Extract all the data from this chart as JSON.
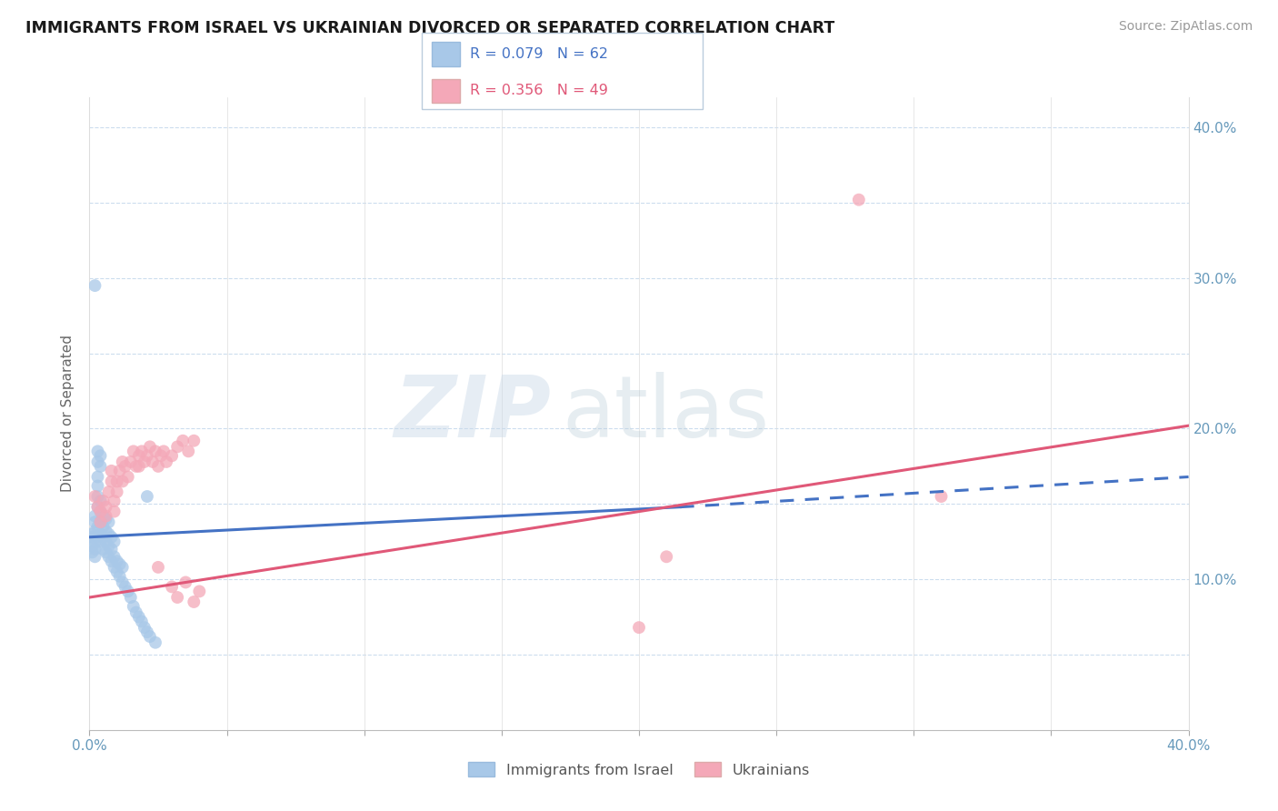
{
  "title": "IMMIGRANTS FROM ISRAEL VS UKRAINIAN DIVORCED OR SEPARATED CORRELATION CHART",
  "source": "Source: ZipAtlas.com",
  "ylabel": "Divorced or Separated",
  "xlim": [
    0.0,
    0.4
  ],
  "ylim": [
    0.0,
    0.42
  ],
  "xticks": [
    0.0,
    0.05,
    0.1,
    0.15,
    0.2,
    0.25,
    0.3,
    0.35,
    0.4
  ],
  "yticks": [
    0.0,
    0.05,
    0.1,
    0.15,
    0.2,
    0.25,
    0.3,
    0.35,
    0.4
  ],
  "R_blue": 0.079,
  "N_blue": 62,
  "R_pink": 0.356,
  "N_pink": 49,
  "legend_label_blue": "Immigrants from Israel",
  "legend_label_pink": "Ukrainians",
  "color_blue": "#a8c8e8",
  "color_pink": "#f4a8b8",
  "line_color_blue": "#4472c4",
  "line_color_pink": "#e05878",
  "watermark_zip": "ZIP",
  "watermark_atlas": "atlas",
  "blue_scatter": [
    [
      0.001,
      0.13
    ],
    [
      0.001,
      0.128
    ],
    [
      0.001,
      0.122
    ],
    [
      0.001,
      0.118
    ],
    [
      0.002,
      0.125
    ],
    [
      0.002,
      0.132
    ],
    [
      0.002,
      0.138
    ],
    [
      0.002,
      0.142
    ],
    [
      0.002,
      0.115
    ],
    [
      0.002,
      0.12
    ],
    [
      0.003,
      0.128
    ],
    [
      0.003,
      0.135
    ],
    [
      0.003,
      0.148
    ],
    [
      0.003,
      0.155
    ],
    [
      0.003,
      0.162
    ],
    [
      0.003,
      0.168
    ],
    [
      0.004,
      0.125
    ],
    [
      0.004,
      0.13
    ],
    [
      0.004,
      0.138
    ],
    [
      0.004,
      0.145
    ],
    [
      0.004,
      0.152
    ],
    [
      0.005,
      0.12
    ],
    [
      0.005,
      0.128
    ],
    [
      0.005,
      0.135
    ],
    [
      0.005,
      0.142
    ],
    [
      0.006,
      0.118
    ],
    [
      0.006,
      0.125
    ],
    [
      0.006,
      0.132
    ],
    [
      0.006,
      0.14
    ],
    [
      0.007,
      0.115
    ],
    [
      0.007,
      0.122
    ],
    [
      0.007,
      0.13
    ],
    [
      0.007,
      0.138
    ],
    [
      0.008,
      0.112
    ],
    [
      0.008,
      0.12
    ],
    [
      0.008,
      0.128
    ],
    [
      0.009,
      0.108
    ],
    [
      0.009,
      0.115
    ],
    [
      0.009,
      0.125
    ],
    [
      0.01,
      0.105
    ],
    [
      0.01,
      0.112
    ],
    [
      0.011,
      0.102
    ],
    [
      0.011,
      0.11
    ],
    [
      0.012,
      0.098
    ],
    [
      0.012,
      0.108
    ],
    [
      0.013,
      0.095
    ],
    [
      0.014,
      0.092
    ],
    [
      0.015,
      0.088
    ],
    [
      0.016,
      0.082
    ],
    [
      0.017,
      0.078
    ],
    [
      0.018,
      0.075
    ],
    [
      0.019,
      0.072
    ],
    [
      0.02,
      0.068
    ],
    [
      0.021,
      0.065
    ],
    [
      0.022,
      0.062
    ],
    [
      0.024,
      0.058
    ],
    [
      0.002,
      0.295
    ],
    [
      0.003,
      0.185
    ],
    [
      0.003,
      0.178
    ],
    [
      0.004,
      0.175
    ],
    [
      0.004,
      0.182
    ],
    [
      0.021,
      0.155
    ]
  ],
  "pink_scatter": [
    [
      0.002,
      0.155
    ],
    [
      0.003,
      0.148
    ],
    [
      0.004,
      0.138
    ],
    [
      0.004,
      0.145
    ],
    [
      0.005,
      0.152
    ],
    [
      0.006,
      0.142
    ],
    [
      0.006,
      0.148
    ],
    [
      0.007,
      0.158
    ],
    [
      0.008,
      0.165
    ],
    [
      0.008,
      0.172
    ],
    [
      0.009,
      0.145
    ],
    [
      0.009,
      0.152
    ],
    [
      0.01,
      0.158
    ],
    [
      0.01,
      0.165
    ],
    [
      0.011,
      0.172
    ],
    [
      0.012,
      0.178
    ],
    [
      0.012,
      0.165
    ],
    [
      0.013,
      0.175
    ],
    [
      0.014,
      0.168
    ],
    [
      0.015,
      0.178
    ],
    [
      0.016,
      0.185
    ],
    [
      0.017,
      0.175
    ],
    [
      0.018,
      0.182
    ],
    [
      0.018,
      0.175
    ],
    [
      0.019,
      0.185
    ],
    [
      0.02,
      0.178
    ],
    [
      0.021,
      0.182
    ],
    [
      0.022,
      0.188
    ],
    [
      0.023,
      0.178
    ],
    [
      0.024,
      0.185
    ],
    [
      0.025,
      0.175
    ],
    [
      0.026,
      0.182
    ],
    [
      0.027,
      0.185
    ],
    [
      0.028,
      0.178
    ],
    [
      0.03,
      0.182
    ],
    [
      0.032,
      0.188
    ],
    [
      0.034,
      0.192
    ],
    [
      0.036,
      0.185
    ],
    [
      0.038,
      0.192
    ],
    [
      0.025,
      0.108
    ],
    [
      0.03,
      0.095
    ],
    [
      0.032,
      0.088
    ],
    [
      0.035,
      0.098
    ],
    [
      0.038,
      0.085
    ],
    [
      0.04,
      0.092
    ],
    [
      0.28,
      0.352
    ],
    [
      0.2,
      0.068
    ],
    [
      0.21,
      0.115
    ],
    [
      0.31,
      0.155
    ]
  ],
  "blue_line_solid": [
    [
      0.0,
      0.128
    ],
    [
      0.215,
      0.148
    ]
  ],
  "blue_line_dashed": [
    [
      0.215,
      0.148
    ],
    [
      0.4,
      0.168
    ]
  ],
  "pink_line": [
    [
      0.0,
      0.088
    ],
    [
      0.4,
      0.202
    ]
  ]
}
